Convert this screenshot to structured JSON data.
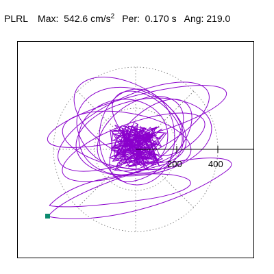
{
  "header": {
    "station": "PLRL",
    "max_label": "Max:",
    "max_value": "542.6 cm/s",
    "max_unit_exp": "2",
    "per_label": "Per:",
    "per_value": "0.170 s",
    "ang_label": "Ang:",
    "ang_value": "219.0"
  },
  "plot": {
    "ring_labels": [
      "200",
      "400"
    ],
    "trace_color": "#8a00cc",
    "grid_color": "#888888",
    "marker_color": "#0b8a6e"
  }
}
